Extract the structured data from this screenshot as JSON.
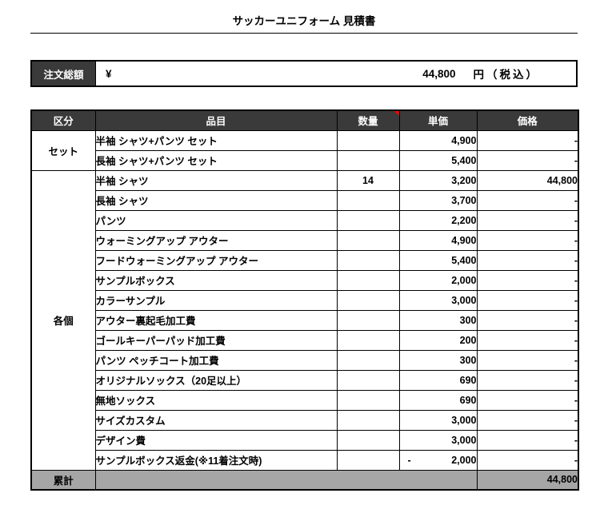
{
  "title": "サッカーユニフォーム 見積書",
  "summary": {
    "label": "注文総額",
    "currency_symbol": "¥",
    "amount": "44,800",
    "unit": "円（税込）"
  },
  "colors": {
    "header_bg": "#3a3a3a",
    "header_text": "#ffffff",
    "footer_bg": "#a6a6a6",
    "marker_red": "#ff0000",
    "border": "#000000"
  },
  "table": {
    "headers": {
      "category": "区分",
      "item": "品目",
      "qty": "数量",
      "unit_price": "単価",
      "price": "価格"
    },
    "comment_marker_icon": "red-corner-marker",
    "groups": [
      {
        "name": "セット",
        "rows": [
          {
            "item": "半袖 シャツ+パンツ セット",
            "qty": "",
            "unit_price": "4,900",
            "price": "-"
          },
          {
            "item": "長袖 シャツ+パンツ セット",
            "qty": "",
            "unit_price": "5,400",
            "price": "-"
          }
        ]
      },
      {
        "name": "各個",
        "rows": [
          {
            "item": "半袖 シャツ",
            "qty": "14",
            "unit_price": "3,200",
            "price": "44,800"
          },
          {
            "item": "長袖 シャツ",
            "qty": "",
            "unit_price": "3,700",
            "price": "-"
          },
          {
            "item": "パンツ",
            "qty": "",
            "unit_price": "2,200",
            "price": "-"
          },
          {
            "item": "ウォーミングアップ アウター",
            "qty": "",
            "unit_price": "4,900",
            "price": "-"
          },
          {
            "item": "フードウォーミングアップ アウター",
            "qty": "",
            "unit_price": "5,400",
            "price": "-"
          },
          {
            "item": "サンプルボックス",
            "qty": "",
            "unit_price": "2,000",
            "price": "-"
          },
          {
            "item": "カラーサンプル",
            "qty": "",
            "unit_price": "3,000",
            "price": "-"
          },
          {
            "item": "アウター裏起毛加工費",
            "qty": "",
            "unit_price": "300",
            "price": "-"
          },
          {
            "item": "ゴールキーパーパッド加工費",
            "qty": "",
            "unit_price": "200",
            "price": "-"
          },
          {
            "item": "パンツ ペッチコート加工費",
            "qty": "",
            "unit_price": "300",
            "price": "-"
          },
          {
            "item": "オリジナルソックス（20足以上）",
            "qty": "",
            "unit_price": "690",
            "price": "-"
          },
          {
            "item": "無地ソックス",
            "qty": "",
            "unit_price": "690",
            "price": "-"
          },
          {
            "item": "サイズカスタム",
            "qty": "",
            "unit_price": "3,000",
            "price": "-"
          },
          {
            "item": "デザイン費",
            "qty": "",
            "unit_price": "3,000",
            "price": "-"
          },
          {
            "item": "サンプルボックス返金(※11着注文時)",
            "qty": "",
            "unit_price": "2,000",
            "unit_price_sign": "-",
            "price": "-"
          }
        ]
      }
    ],
    "footer": {
      "label": "累計",
      "total": "44,800"
    }
  }
}
